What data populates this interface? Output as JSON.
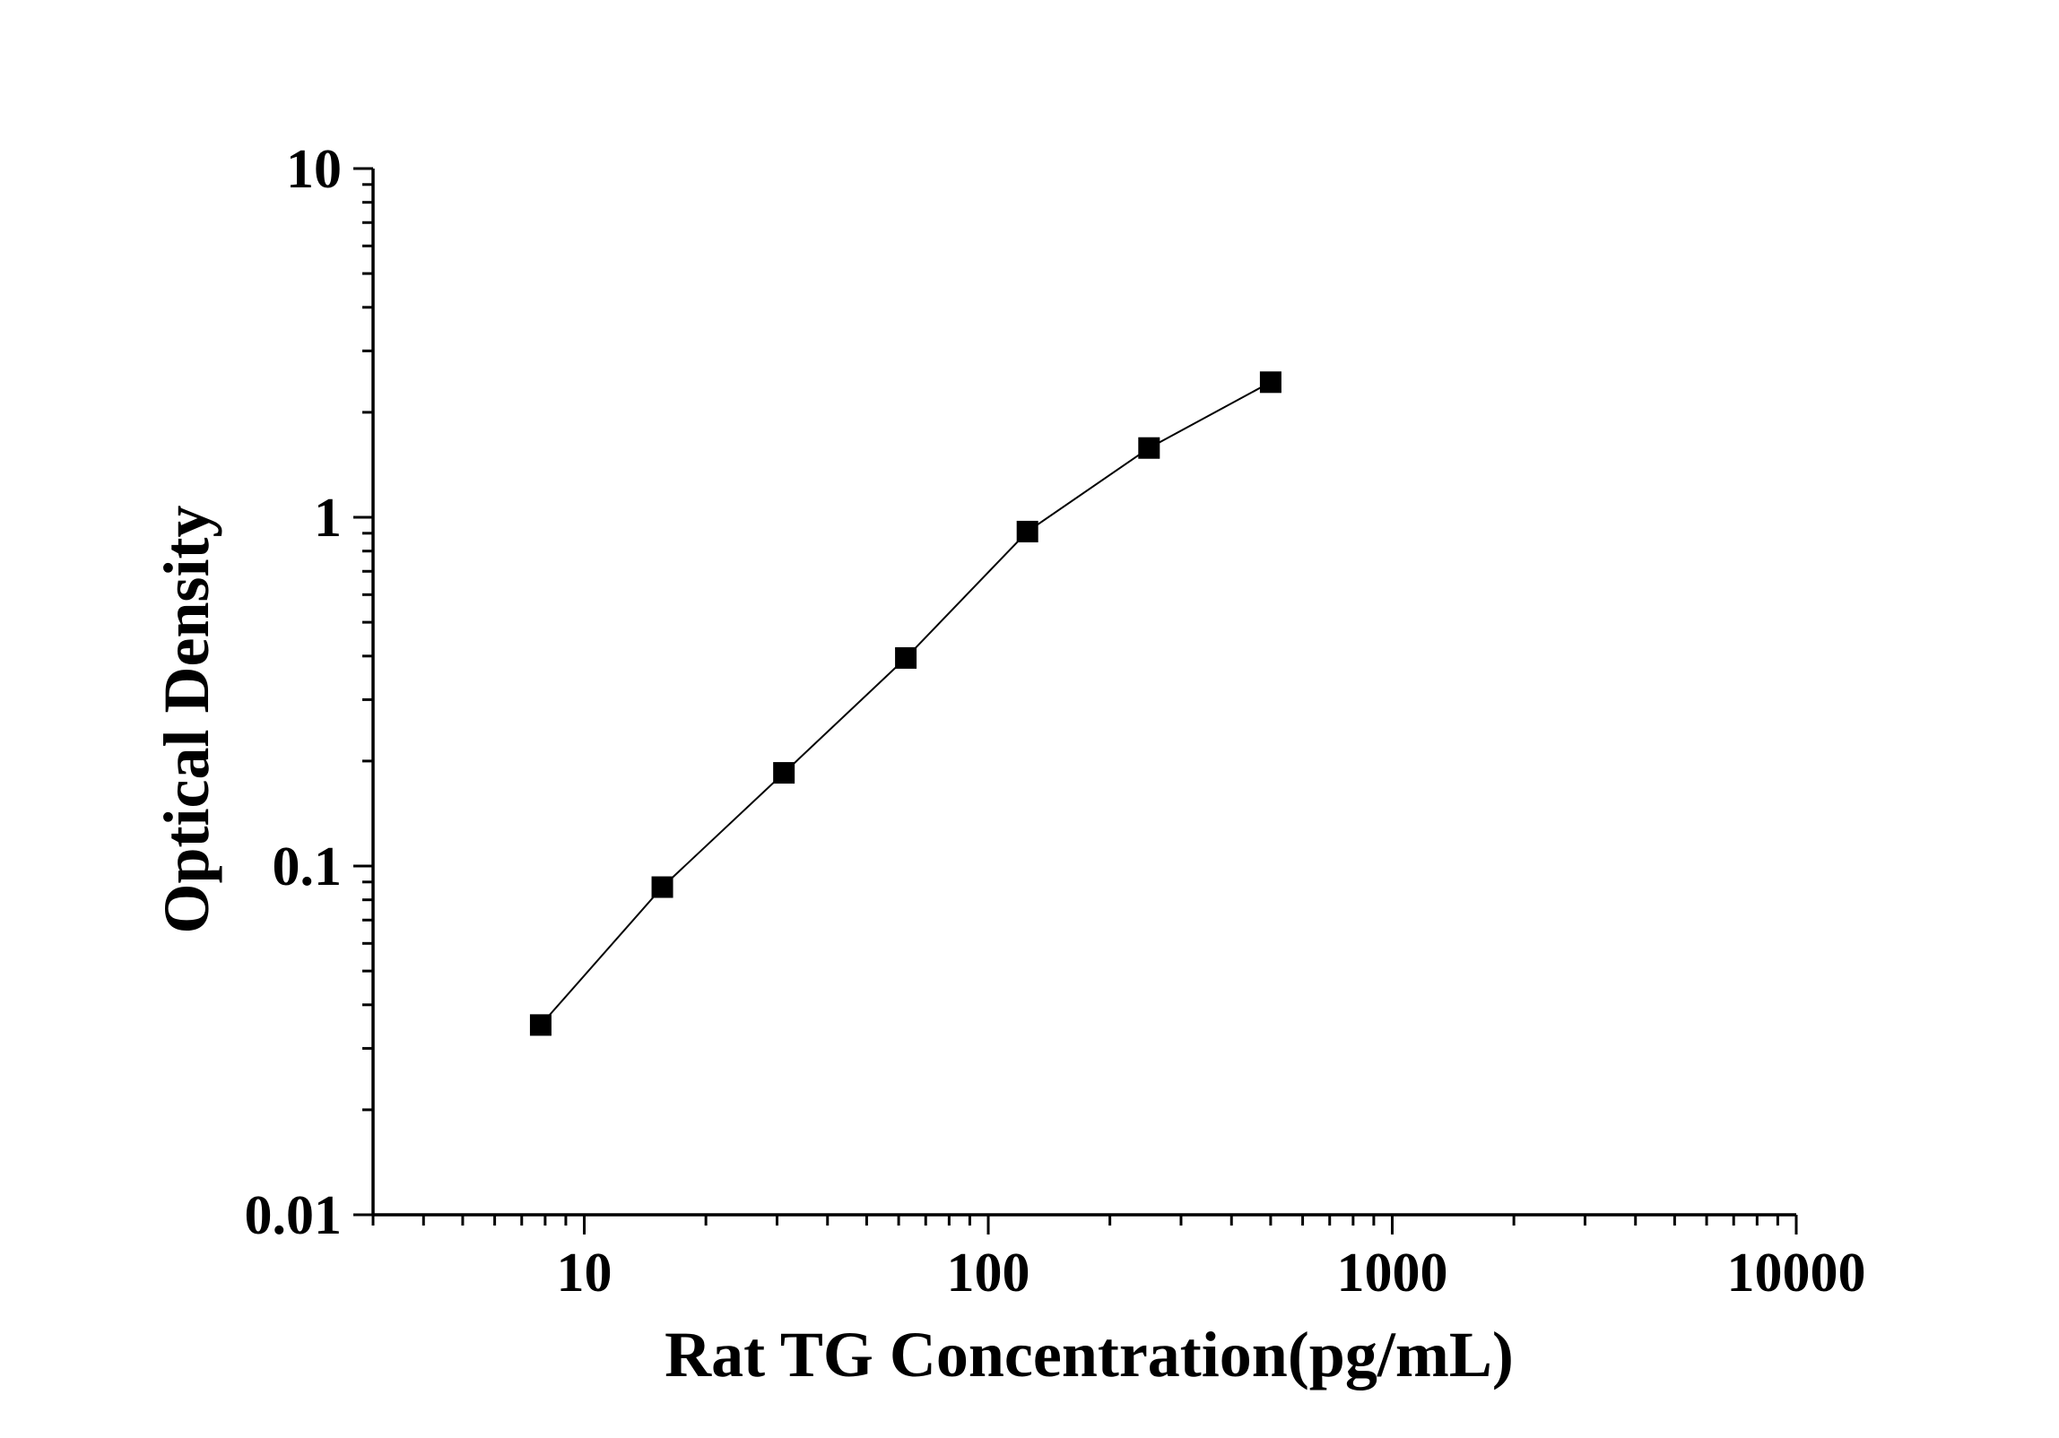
{
  "chart_data": {
    "type": "scatter",
    "title": "",
    "xlabel": "Rat TG Concentration(pg/mL)",
    "ylabel": "Optical Density",
    "x_scale": "log",
    "y_scale": "log",
    "xlim": [
      3,
      10000
    ],
    "ylim": [
      0.01,
      10
    ],
    "x_ticks": [
      10,
      100,
      1000,
      10000
    ],
    "x_tick_labels": [
      "10",
      "100",
      "1000",
      "10000"
    ],
    "y_ticks": [
      0.01,
      0.1,
      1,
      10
    ],
    "y_tick_labels": [
      "0.01",
      "0.1",
      "1",
      "10"
    ],
    "grid": false,
    "legend": "none",
    "series": [
      {
        "marker": "square",
        "line": true,
        "color": "#000000",
        "x": [
          7.8,
          15.6,
          31.2,
          62.5,
          125,
          250,
          500
        ],
        "y": [
          0.035,
          0.087,
          0.185,
          0.395,
          0.91,
          1.58,
          2.44
        ]
      }
    ]
  }
}
